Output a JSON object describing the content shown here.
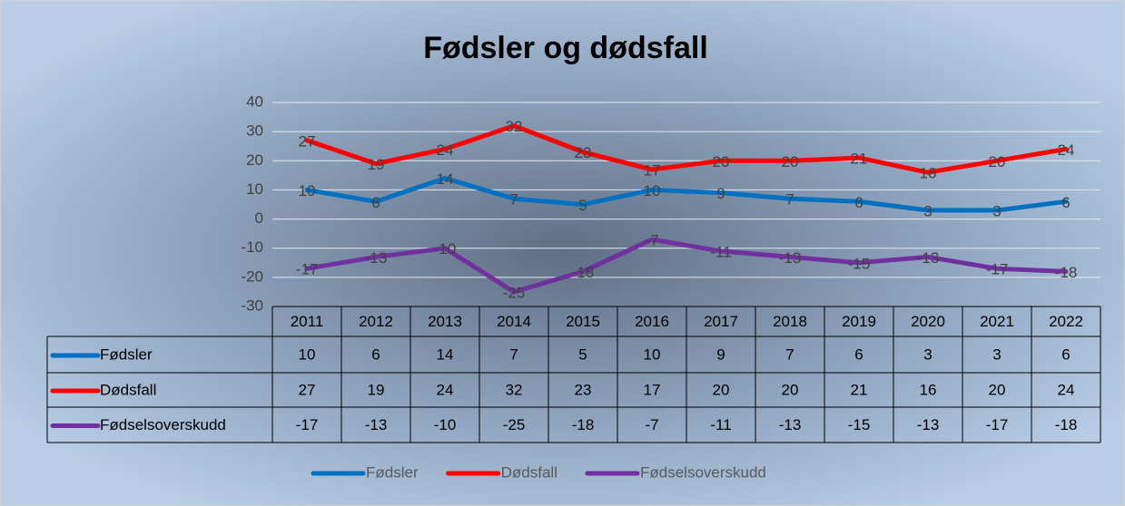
{
  "chart_data": {
    "type": "line",
    "title": "Fødsler og dødsfall",
    "categories": [
      "2011",
      "2012",
      "2013",
      "2014",
      "2015",
      "2016",
      "2017",
      "2018",
      "2019",
      "2020",
      "2021",
      "2022"
    ],
    "series": [
      {
        "name": "Fødsler",
        "color": "#0070c0",
        "values": [
          10,
          6,
          14,
          7,
          5,
          10,
          9,
          7,
          6,
          3,
          3,
          6
        ]
      },
      {
        "name": "Dødsfall",
        "color": "#ff0000",
        "values": [
          27,
          19,
          24,
          32,
          23,
          17,
          20,
          20,
          21,
          16,
          20,
          24
        ]
      },
      {
        "name": "Fødselsoverskudd",
        "color": "#7030a0",
        "values": [
          -17,
          -13,
          -10,
          -25,
          -18,
          -7,
          -11,
          -13,
          -15,
          -13,
          -17,
          -18
        ]
      }
    ],
    "ylim": [
      -30,
      40
    ],
    "yticks": [
      -30,
      -20,
      -10,
      0,
      10,
      20,
      30,
      40
    ],
    "grid": true,
    "legend": "bottom"
  }
}
